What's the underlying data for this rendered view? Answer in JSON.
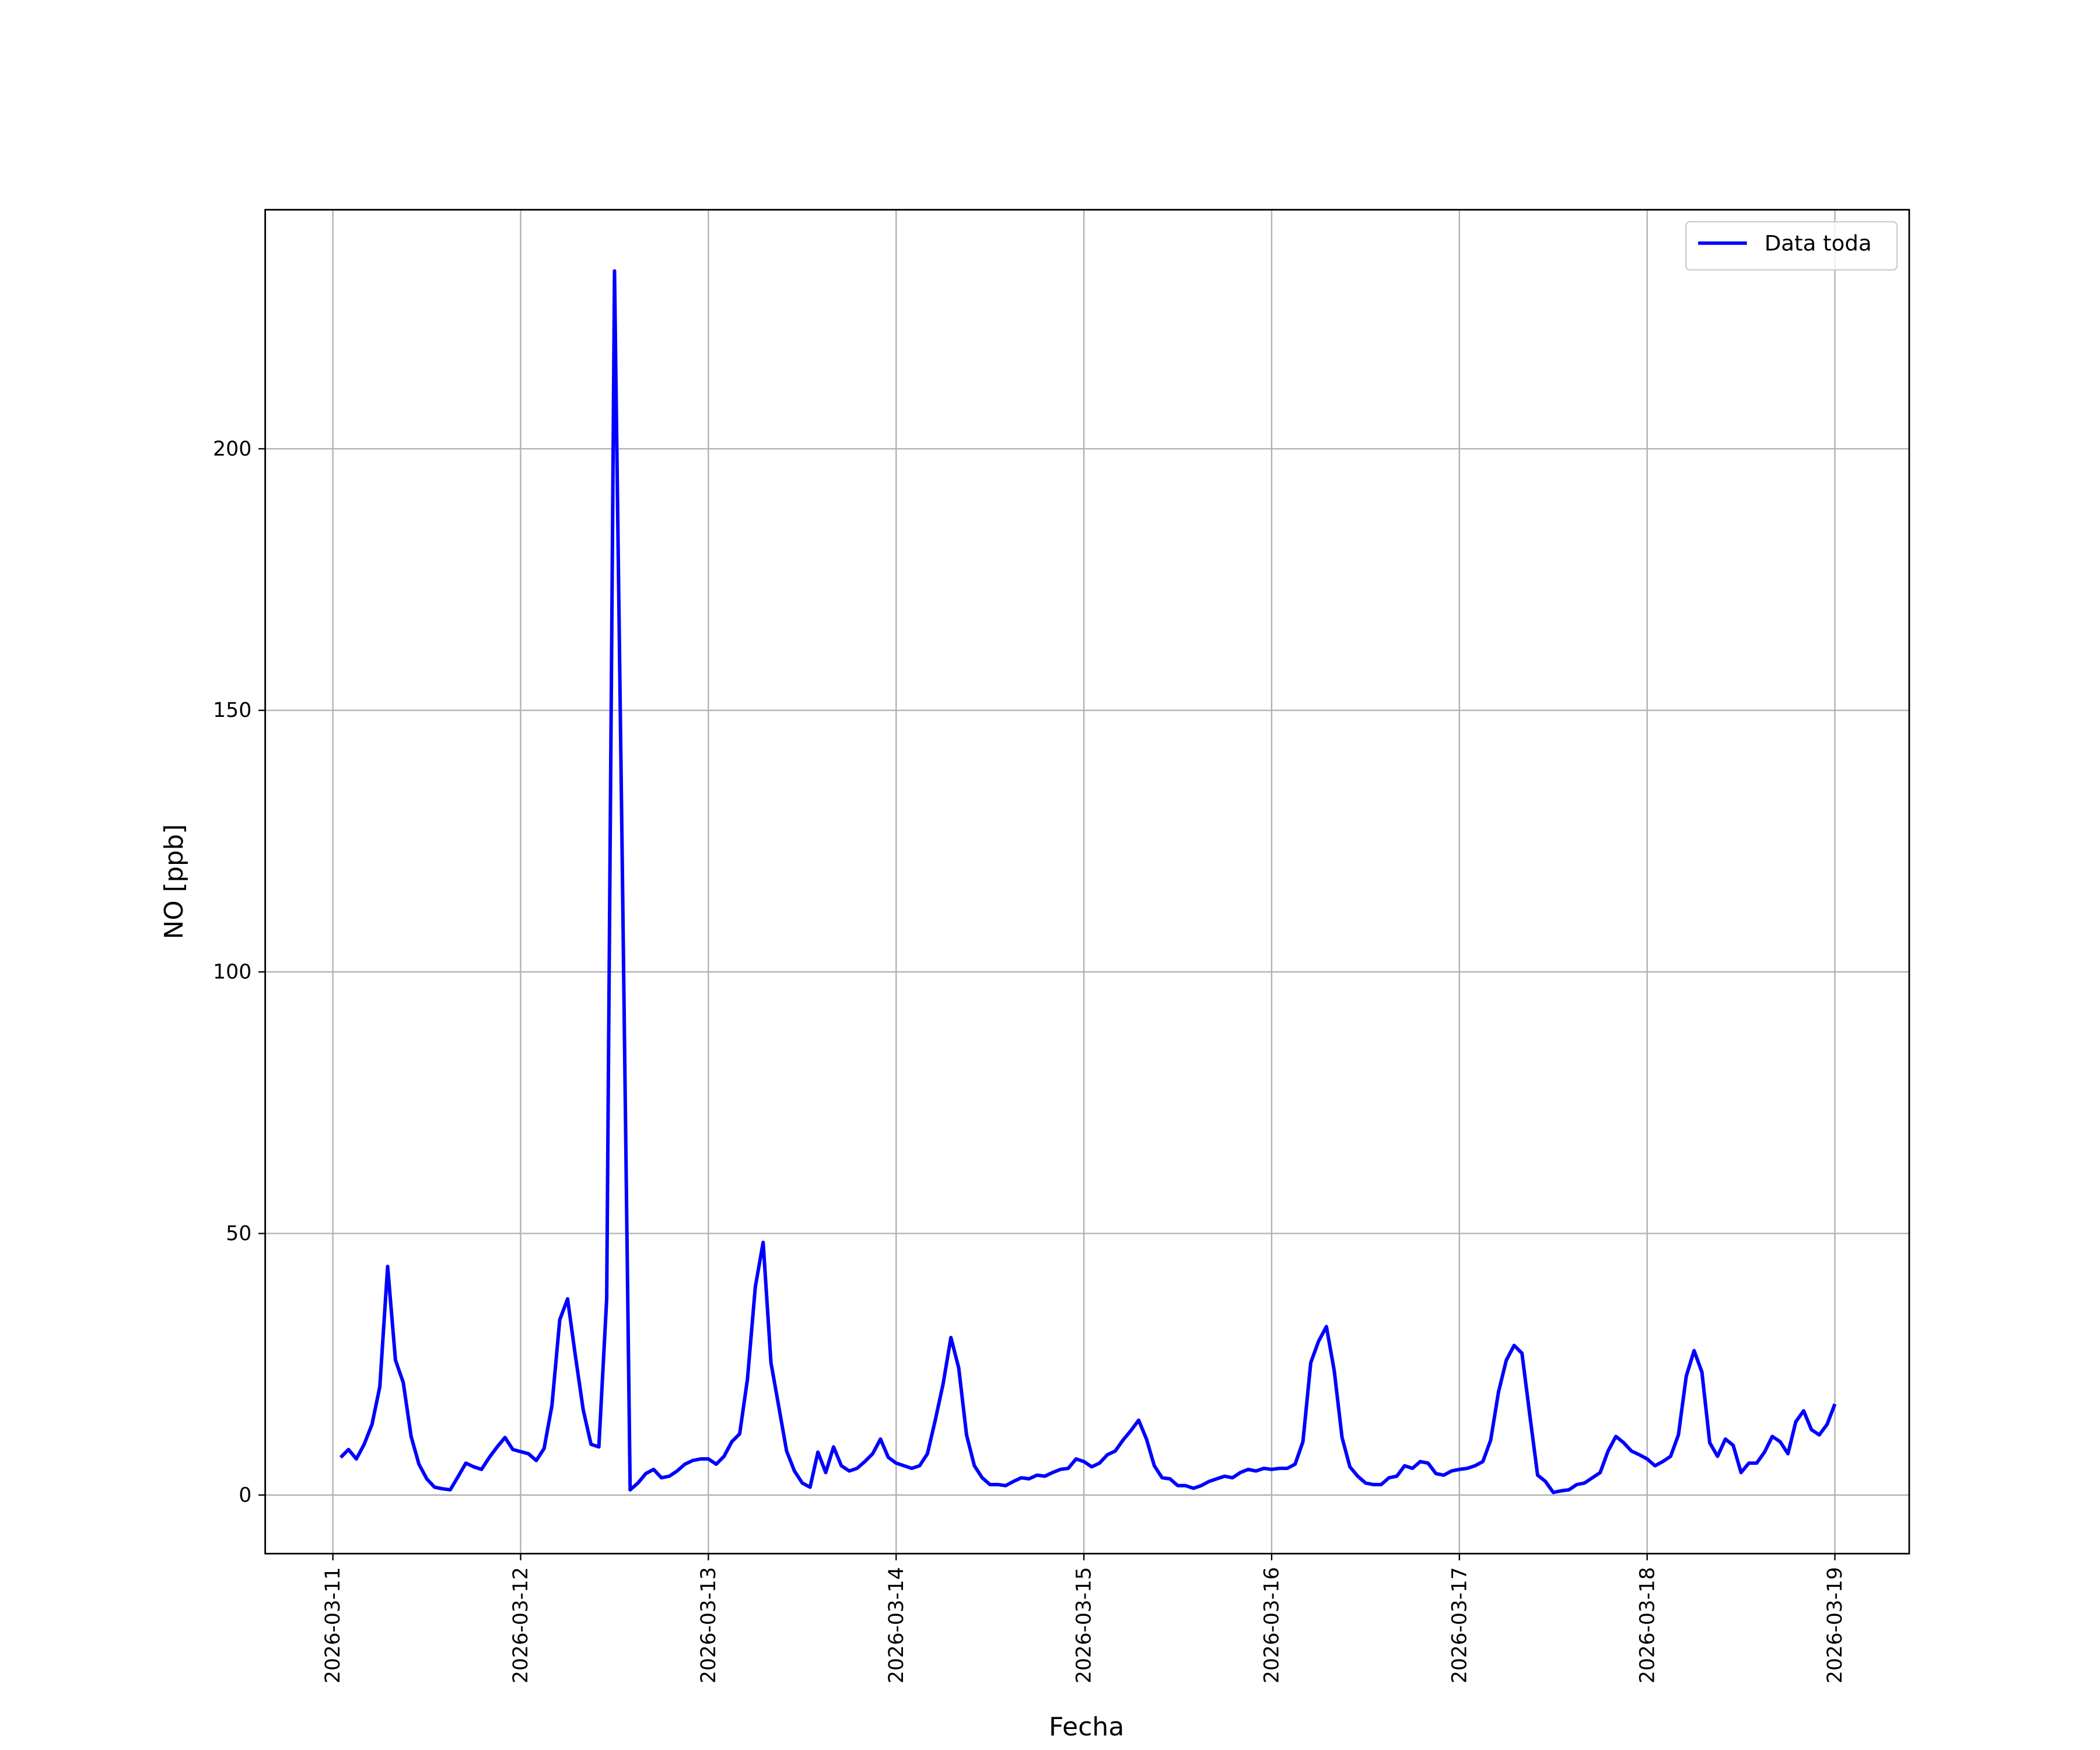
{
  "chart_data": {
    "type": "line",
    "xlabel": "Fecha",
    "ylabel": "NO [ppb]",
    "xlim": [
      "2026-03-10 15:21",
      "2026-03-19 09:30"
    ],
    "xticks": [
      "2026-03-11",
      "2026-03-12",
      "2026-03-13",
      "2026-03-14",
      "2026-03-15",
      "2026-03-16",
      "2026-03-17",
      "2026-03-18",
      "2026-03-19"
    ],
    "ylim": [
      -11.2,
      245.7
    ],
    "yticks": [
      0,
      50,
      100,
      150,
      200
    ],
    "grid": true,
    "legend": "upper right",
    "x": [
      "2026-03-11 01:00",
      "2026-03-11 02:00",
      "2026-03-11 03:00",
      "2026-03-11 04:00",
      "2026-03-11 05:00",
      "2026-03-11 06:00",
      "2026-03-11 07:00",
      "2026-03-11 08:00",
      "2026-03-11 09:00",
      "2026-03-11 10:00",
      "2026-03-11 11:00",
      "2026-03-11 12:00",
      "2026-03-11 13:00",
      "2026-03-11 14:00",
      "2026-03-11 15:00",
      "2026-03-11 16:00",
      "2026-03-11 17:00",
      "2026-03-11 18:00",
      "2026-03-11 19:00",
      "2026-03-11 20:00",
      "2026-03-11 21:00",
      "2026-03-11 22:00",
      "2026-03-11 23:00",
      "2026-03-12 00:00",
      "2026-03-12 01:00",
      "2026-03-12 02:00",
      "2026-03-12 03:00",
      "2026-03-12 04:00",
      "2026-03-12 05:00",
      "2026-03-12 06:00",
      "2026-03-12 07:00",
      "2026-03-12 08:00",
      "2026-03-12 09:00",
      "2026-03-12 10:00",
      "2026-03-12 11:00",
      "2026-03-12 12:00",
      "2026-03-12 13:00",
      "2026-03-12 14:00",
      "2026-03-12 15:00",
      "2026-03-12 16:00",
      "2026-03-12 17:00",
      "2026-03-12 18:00",
      "2026-03-12 19:00",
      "2026-03-12 20:00",
      "2026-03-12 21:00",
      "2026-03-12 22:00",
      "2026-03-12 23:00",
      "2026-03-13 00:00",
      "2026-03-13 01:00",
      "2026-03-13 02:00",
      "2026-03-13 03:00",
      "2026-03-13 04:00",
      "2026-03-13 05:00",
      "2026-03-13 06:00",
      "2026-03-13 07:00",
      "2026-03-13 08:00",
      "2026-03-13 09:00",
      "2026-03-13 10:00",
      "2026-03-13 11:00",
      "2026-03-13 12:00",
      "2026-03-13 13:00",
      "2026-03-13 14:00",
      "2026-03-13 15:00",
      "2026-03-13 16:00",
      "2026-03-13 17:00",
      "2026-03-13 18:00",
      "2026-03-13 19:00",
      "2026-03-13 20:00",
      "2026-03-13 21:00",
      "2026-03-13 22:00",
      "2026-03-13 23:00",
      "2026-03-14 00:00",
      "2026-03-14 01:00",
      "2026-03-14 02:00",
      "2026-03-14 03:00",
      "2026-03-14 04:00",
      "2026-03-14 05:00",
      "2026-03-14 06:00",
      "2026-03-14 07:00",
      "2026-03-14 08:00",
      "2026-03-14 09:00",
      "2026-03-14 10:00",
      "2026-03-14 11:00",
      "2026-03-14 12:00",
      "2026-03-14 13:00",
      "2026-03-14 14:00",
      "2026-03-14 15:00",
      "2026-03-14 16:00",
      "2026-03-14 17:00",
      "2026-03-14 18:00",
      "2026-03-14 19:00",
      "2026-03-14 20:00",
      "2026-03-14 21:00",
      "2026-03-14 22:00",
      "2026-03-14 23:00",
      "2026-03-15 00:00",
      "2026-03-15 01:00",
      "2026-03-15 02:00",
      "2026-03-15 03:00",
      "2026-03-15 04:00",
      "2026-03-15 05:00",
      "2026-03-15 06:00",
      "2026-03-15 07:00",
      "2026-03-15 08:00",
      "2026-03-15 09:00",
      "2026-03-15 10:00",
      "2026-03-15 11:00",
      "2026-03-15 12:00",
      "2026-03-15 13:00",
      "2026-03-15 14:00",
      "2026-03-15 15:00",
      "2026-03-15 16:00",
      "2026-03-15 17:00",
      "2026-03-15 18:00",
      "2026-03-15 19:00",
      "2026-03-15 20:00",
      "2026-03-15 21:00",
      "2026-03-15 22:00",
      "2026-03-15 23:00",
      "2026-03-16 00:00",
      "2026-03-16 01:00",
      "2026-03-16 02:00",
      "2026-03-16 03:00",
      "2026-03-16 04:00",
      "2026-03-16 05:00",
      "2026-03-16 06:00",
      "2026-03-16 07:00",
      "2026-03-16 08:00",
      "2026-03-16 09:00",
      "2026-03-16 10:00",
      "2026-03-16 11:00",
      "2026-03-16 12:00",
      "2026-03-16 13:00",
      "2026-03-16 14:00",
      "2026-03-16 15:00",
      "2026-03-16 16:00",
      "2026-03-16 17:00",
      "2026-03-16 18:00",
      "2026-03-16 19:00",
      "2026-03-16 20:00",
      "2026-03-16 21:00",
      "2026-03-16 22:00",
      "2026-03-16 23:00",
      "2026-03-17 00:00",
      "2026-03-17 01:00",
      "2026-03-17 02:00",
      "2026-03-17 03:00",
      "2026-03-17 04:00",
      "2026-03-17 05:00",
      "2026-03-17 06:00",
      "2026-03-17 07:00",
      "2026-03-17 08:00",
      "2026-03-17 09:00",
      "2026-03-17 10:00",
      "2026-03-17 11:00",
      "2026-03-17 12:00",
      "2026-03-17 13:00",
      "2026-03-17 14:00",
      "2026-03-17 15:00",
      "2026-03-17 16:00",
      "2026-03-17 17:00",
      "2026-03-17 18:00",
      "2026-03-17 19:00",
      "2026-03-17 20:00",
      "2026-03-17 21:00",
      "2026-03-17 22:00",
      "2026-03-17 23:00",
      "2026-03-18 00:00",
      "2026-03-18 01:00",
      "2026-03-18 02:00",
      "2026-03-18 03:00",
      "2026-03-18 04:00",
      "2026-03-18 05:00",
      "2026-03-18 06:00",
      "2026-03-18 07:00",
      "2026-03-18 08:00",
      "2026-03-18 09:00",
      "2026-03-18 10:00",
      "2026-03-18 11:00",
      "2026-03-18 12:00",
      "2026-03-18 13:00",
      "2026-03-18 14:00",
      "2026-03-18 15:00",
      "2026-03-18 16:00",
      "2026-03-18 17:00",
      "2026-03-18 18:00",
      "2026-03-18 19:00",
      "2026-03-18 20:00",
      "2026-03-18 21:00",
      "2026-03-18 22:00",
      "2026-03-18 23:00",
      "2026-03-19 00:00"
    ],
    "series": [
      {
        "name": "Data toda",
        "color": "#0000ff",
        "values": [
          7.2,
          8.7,
          6.9,
          9.7,
          13.5,
          20.7,
          43.7,
          25.8,
          21.5,
          11.2,
          5.9,
          3.1,
          1.5,
          1.2,
          1.0,
          3.5,
          6.1,
          5.4,
          4.9,
          7.2,
          9.2,
          11.0,
          8.7,
          8.3,
          7.9,
          6.6,
          8.9,
          17.1,
          33.5,
          37.5,
          26.6,
          16.3,
          9.7,
          9.2,
          37.5,
          234,
          120,
          1.0,
          2.3,
          4.1,
          4.9,
          3.3,
          3.6,
          4.6,
          5.9,
          6.6,
          6.9,
          6.9,
          5.9,
          7.4,
          10.2,
          11.7,
          22.2,
          39.8,
          48.3,
          25.3,
          16.9,
          8.4,
          4.6,
          2.3,
          1.5,
          8.2,
          4.3,
          9.2,
          5.6,
          4.6,
          5.1,
          6.4,
          7.9,
          10.7,
          7.2,
          6.1,
          5.6,
          5.1,
          5.6,
          7.9,
          14.3,
          21.2,
          30.1,
          24.3,
          11.5,
          5.6,
          3.3,
          2.0,
          2.0,
          1.8,
          2.6,
          3.3,
          3.1,
          3.8,
          3.6,
          4.3,
          4.9,
          5.1,
          6.9,
          6.4,
          5.4,
          6.1,
          7.7,
          8.4,
          10.5,
          12.3,
          14.3,
          10.7,
          5.6,
          3.3,
          3.1,
          1.8,
          1.8,
          1.3,
          1.8,
          2.6,
          3.1,
          3.6,
          3.3,
          4.3,
          4.9,
          4.6,
          5.1,
          4.9,
          5.1,
          5.1,
          5.9,
          10.2,
          25.3,
          29.4,
          32.2,
          23.8,
          11.0,
          5.4,
          3.6,
          2.3,
          2.0,
          2.0,
          3.3,
          3.6,
          5.6,
          5.1,
          6.4,
          6.1,
          4.1,
          3.8,
          4.6,
          4.9,
          5.1,
          5.6,
          6.4,
          10.5,
          19.7,
          25.8,
          28.6,
          27.1,
          15.3,
          3.8,
          2.6,
          0.5,
          0.8,
          1.0,
          2.0,
          2.3,
          3.3,
          4.3,
          8.4,
          11.2,
          10.0,
          8.4,
          7.7,
          6.9,
          5.6,
          6.4,
          7.4,
          11.5,
          22.7,
          27.6,
          23.5,
          10.0,
          7.4,
          10.7,
          9.5,
          4.3,
          6.1,
          6.1,
          8.2,
          11.2,
          10.2,
          7.9,
          14.0,
          16.1,
          12.5,
          11.5,
          13.5,
          17.4
        ]
      }
    ]
  }
}
